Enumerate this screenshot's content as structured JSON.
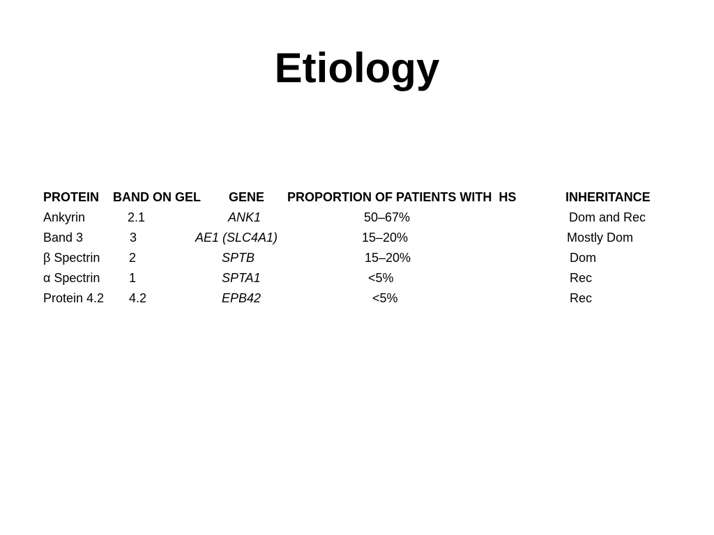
{
  "slide": {
    "title": "Etiology"
  },
  "table": {
    "headers": {
      "protein": "PROTEIN",
      "band": "BAND ON GEL",
      "gene": "GENE",
      "proportion": "PROPORTION OF PATIENTS WITH  HS",
      "inheritance": "INHERITANCE"
    },
    "rows": [
      {
        "protein": "Ankyrin",
        "band": "2.1",
        "gene": "ANK1",
        "proportion": "50–67%",
        "inheritance": "Dom and Rec"
      },
      {
        "protein": "Band 3",
        "band": "3",
        "gene": "AE1 (SLC4A1)",
        "proportion": "15–20%",
        "inheritance": "Mostly Dom"
      },
      {
        "protein": "β Spectrin",
        "band": "2",
        "gene": "SPTB",
        "proportion": "15–20%",
        "inheritance": "Dom"
      },
      {
        "protein": "α Spectrin",
        "band": "1",
        "gene": "SPTA1",
        "proportion": "<5%",
        "inheritance": "Rec"
      },
      {
        "protein": "Protein 4.2",
        "band": "4.2",
        "gene": "EPB42",
        "proportion": "<5%",
        "inheritance": "Rec"
      }
    ]
  }
}
